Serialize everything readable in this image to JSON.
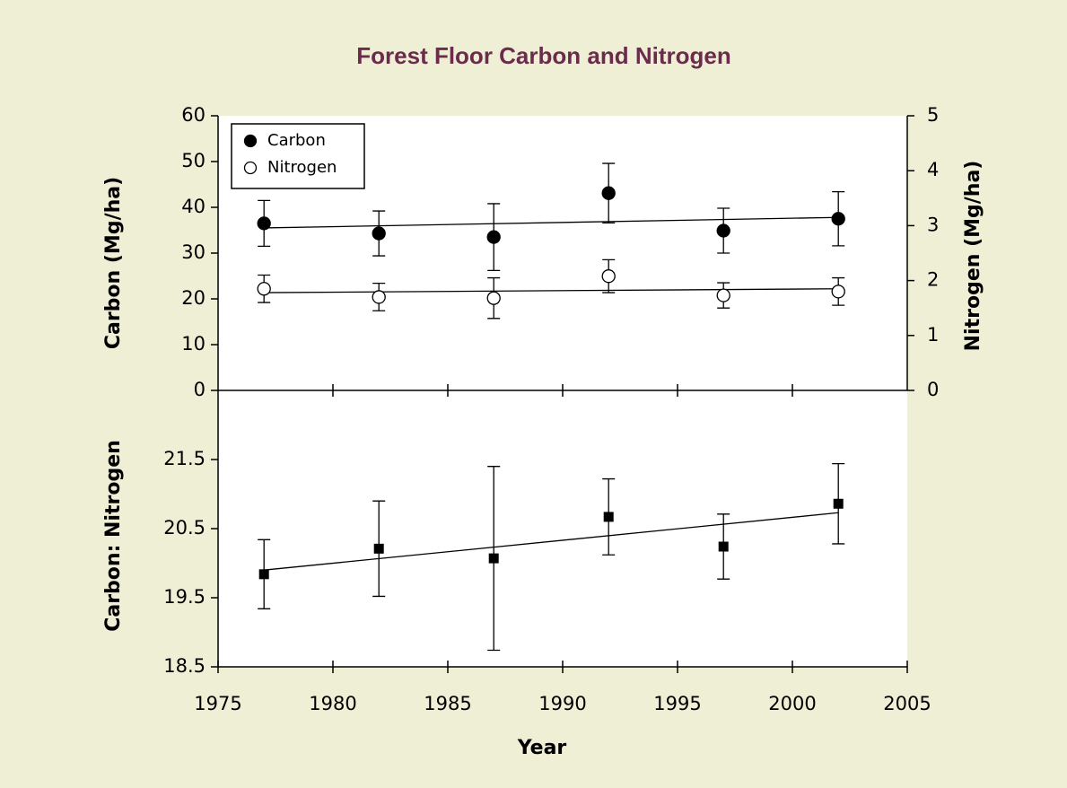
{
  "chart_data": [
    {
      "type": "scatter",
      "title": "Forest Floor Carbon and Nitrogen",
      "ylabel": "Carbon (Mg/ha)",
      "y2label": "Nitrogen (Mg/ha)",
      "xlim": [
        1975,
        2005
      ],
      "xticks": [
        1980,
        1985,
        1990,
        1995,
        2000
      ],
      "ylim": [
        0,
        60
      ],
      "yticks": [
        0,
        10,
        20,
        30,
        40,
        50,
        60
      ],
      "y2lim": [
        0,
        5
      ],
      "y2ticks": [
        0,
        1,
        2,
        3,
        4,
        5
      ],
      "legend": "upper left",
      "series": [
        {
          "name": "Carbon",
          "color": "#000000",
          "marker": "filled circle",
          "x": [
            1977,
            1982,
            1987,
            1992,
            1997,
            2002
          ],
          "values": [
            36.5,
            34.3,
            33.5,
            43.1,
            34.9,
            37.5
          ],
          "error": [
            5.0,
            4.9,
            7.3,
            6.5,
            4.9,
            5.9
          ],
          "trend": [
            35.5,
            37.8
          ]
        },
        {
          "name": "Nitrogen",
          "color": "#000000",
          "marker": "open circle",
          "axis": "y2",
          "x": [
            1977,
            1982,
            1987,
            1992,
            1997,
            2002
          ],
          "values": [
            1.85,
            1.7,
            1.68,
            2.08,
            1.73,
            1.8
          ],
          "error": [
            0.25,
            0.25,
            0.37,
            0.3,
            0.23,
            0.25
          ],
          "trend": [
            1.78,
            1.85
          ]
        }
      ]
    },
    {
      "type": "scatter",
      "xlabel": "Year",
      "ylabel": "Carbon: Nitrogen",
      "xlim": [
        1975,
        2005
      ],
      "xticks": [
        1975,
        1980,
        1985,
        1990,
        1995,
        2000,
        2005
      ],
      "ylim": [
        18.5,
        22.5
      ],
      "yticks": [
        18.5,
        19.5,
        20.5,
        21.5
      ],
      "series": [
        {
          "color": "#000000",
          "marker": "square",
          "x": [
            1977,
            1982,
            1987,
            1992,
            1997,
            2002
          ],
          "values": [
            19.84,
            20.21,
            20.07,
            20.67,
            20.24,
            20.86
          ],
          "error": [
            0.5,
            0.69,
            1.33,
            0.55,
            0.47,
            0.58
          ],
          "trend": [
            19.9,
            20.73
          ]
        }
      ]
    }
  ]
}
